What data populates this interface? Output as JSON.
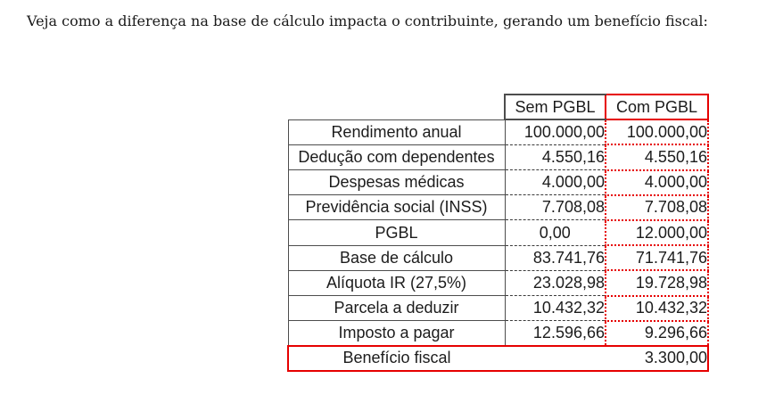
{
  "intro": {
    "text": "Veja como a diferença na base de cálculo impacta o contribuinte, gerando um benefício fiscal:"
  },
  "table": {
    "columns": {
      "label": "",
      "sem": "Sem PGBL",
      "com": "Com PGBL"
    },
    "rows": [
      {
        "label": "Rendimento anual",
        "sem": "100.000,00",
        "com": "100.000,00"
      },
      {
        "label": "Dedução com dependentes",
        "sem": "4.550,16",
        "com": "4.550,16"
      },
      {
        "label": "Despesas médicas",
        "sem": "4.000,00",
        "com": "4.000,00"
      },
      {
        "label": "Previdência social (INSS)",
        "sem": "7.708,08",
        "com": "7.708,08"
      },
      {
        "label": "PGBL",
        "sem": "0,00",
        "com": "12.000,00",
        "sem_align": "center"
      },
      {
        "label": "Base de cálculo",
        "sem": "83.741,76",
        "com": "71.741,76"
      },
      {
        "label": "Alíquota IR (27,5%)",
        "sem": "23.028,98",
        "com": "19.728,98"
      },
      {
        "label": "Parcela a deduzir",
        "sem": "10.432,32",
        "com": "10.432,32"
      },
      {
        "label": "Imposto a pagar",
        "sem": "12.596,66",
        "com": "9.296,66"
      }
    ],
    "footer": {
      "label": "Benefício fiscal",
      "sem": "",
      "com": "3.300,00"
    }
  },
  "colors": {
    "accent_red": "#e60000",
    "border_gray": "#4d4d4d",
    "dash_gray": "#3a3a3a",
    "text": "#1c1c1c",
    "background": "#ffffff"
  }
}
